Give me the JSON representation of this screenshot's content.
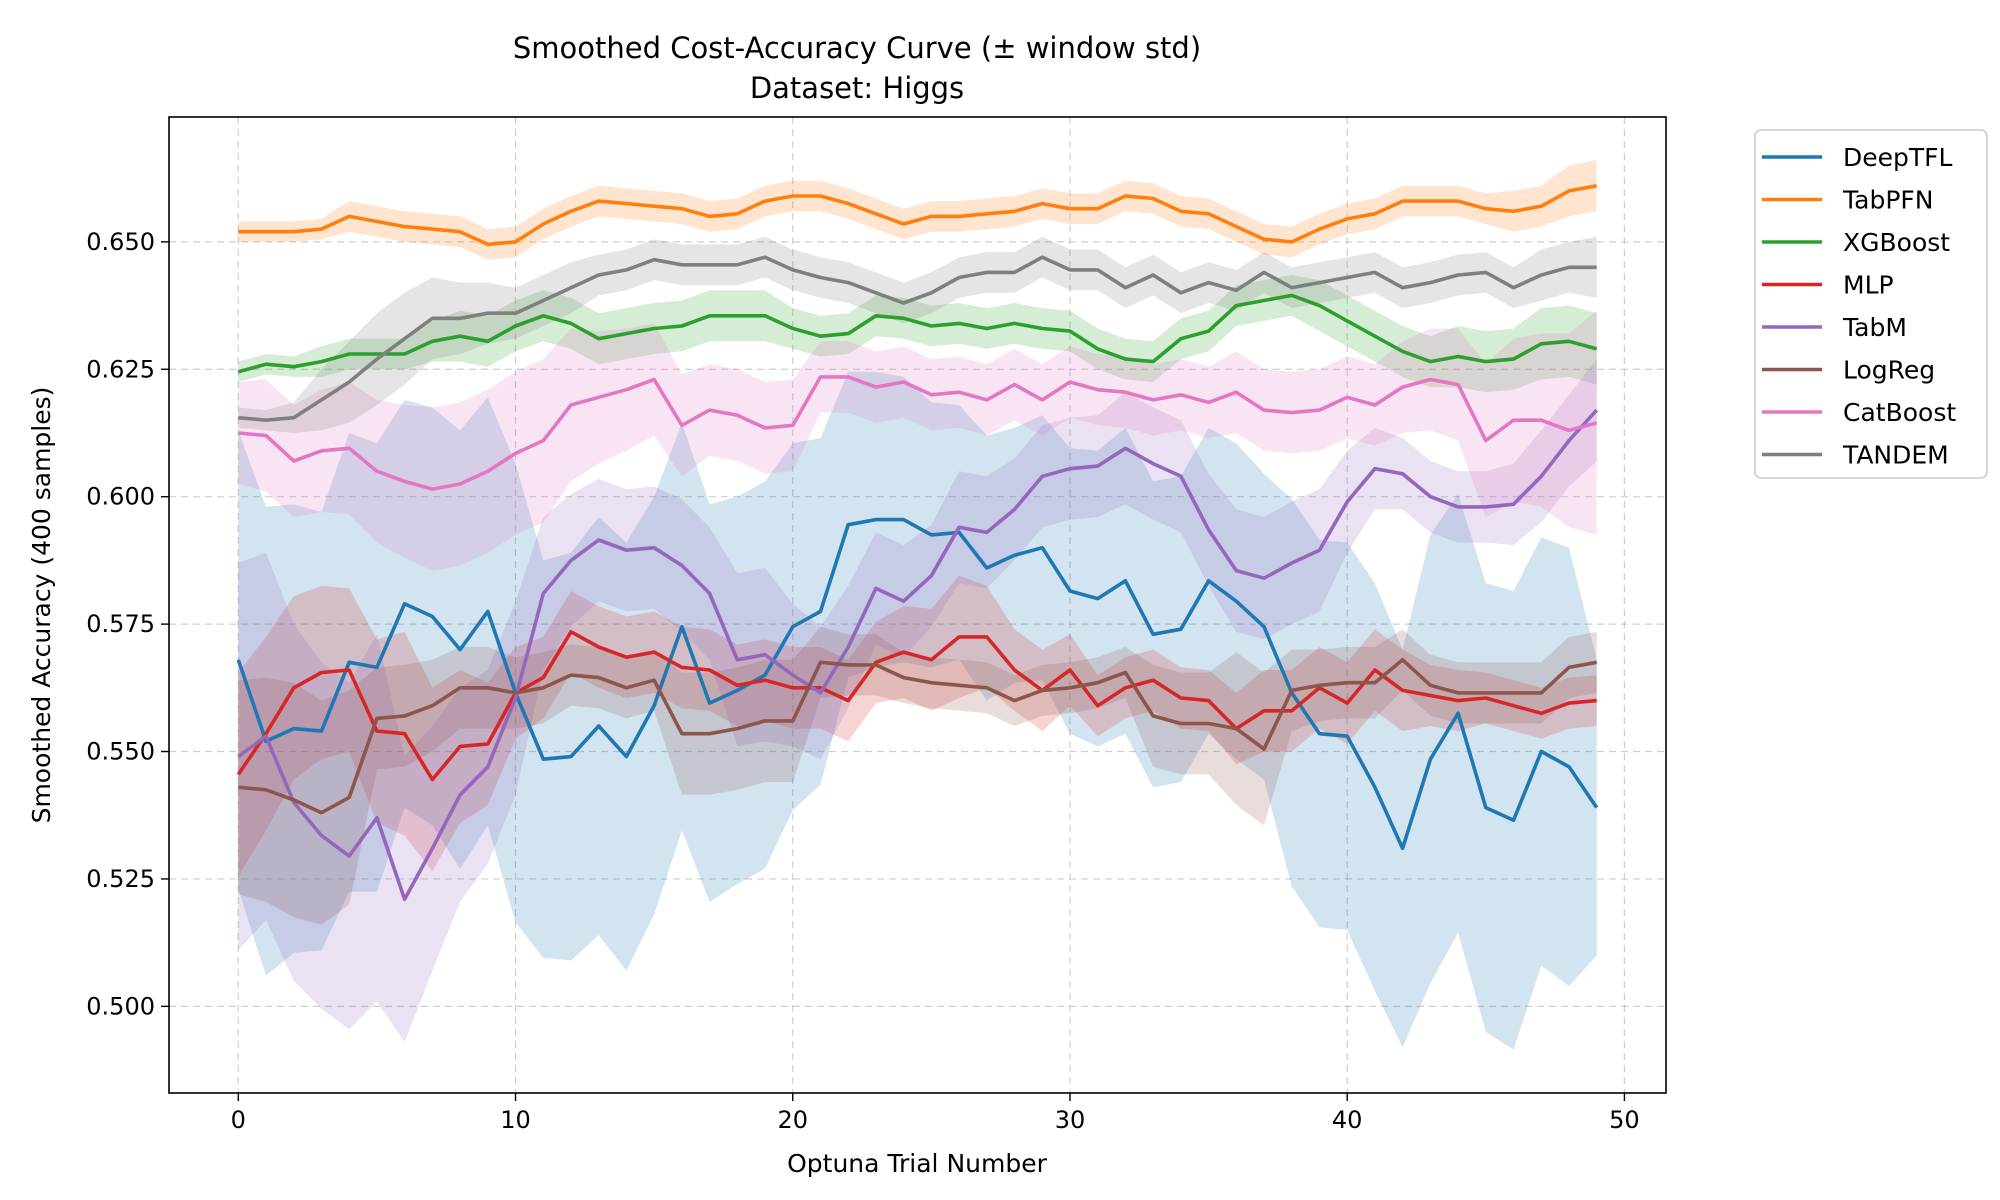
{
  "chart_data": {
    "type": "line",
    "title": "Smoothed Cost-Accuracy Curve (± window std)",
    "subtitle": "Dataset: Higgs",
    "xlabel": "Optuna Trial Number",
    "ylabel": "Smoothed Accuracy (400 samples)",
    "xlim": [
      -2.5,
      51.5
    ],
    "ylim": [
      0.483,
      0.6745
    ],
    "xticks": [
      0,
      10,
      20,
      30,
      40,
      50
    ],
    "yticks": [
      0.5,
      0.525,
      0.55,
      0.575,
      0.6,
      0.625,
      0.65
    ],
    "ytick_labels": [
      "0.500",
      "0.525",
      "0.550",
      "0.575",
      "0.600",
      "0.625",
      "0.650"
    ],
    "grid": true,
    "legend_position": "outside-top-right",
    "series": [
      {
        "name": "DeepTFL",
        "color": "#1f77b4",
        "values": [
          0.568,
          0.552,
          0.5545,
          0.554,
          0.5675,
          0.5665,
          0.579,
          0.5765,
          0.57,
          0.5775,
          0.5615,
          0.5485,
          0.549,
          0.555,
          0.549,
          0.559,
          0.5745,
          0.5595,
          0.562,
          0.565,
          0.5745,
          0.5775,
          0.5945,
          0.5955,
          0.5955,
          0.5925,
          0.593,
          0.586,
          0.5885,
          0.59,
          0.5815,
          0.58,
          0.5835,
          0.573,
          0.574,
          0.5835,
          0.5795,
          0.5745,
          0.5615,
          0.5535,
          0.553,
          0.543,
          0.531,
          0.5485,
          0.5575,
          0.539,
          0.5365,
          0.55,
          0.547,
          0.539
        ],
        "std": [
          0.045,
          0.046,
          0.044,
          0.043,
          0.045,
          0.044,
          0.04,
          0.041,
          0.043,
          0.042,
          0.045,
          0.039,
          0.04,
          0.041,
          0.042,
          0.041,
          0.04,
          0.039,
          0.038,
          0.038,
          0.036,
          0.034,
          0.03,
          0.029,
          0.028,
          0.026,
          0.025,
          0.026,
          0.025,
          0.026,
          0.028,
          0.029,
          0.03,
          0.03,
          0.03,
          0.03,
          0.031,
          0.03,
          0.038,
          0.038,
          0.038,
          0.04,
          0.039,
          0.044,
          0.043,
          0.044,
          0.045,
          0.042,
          0.043,
          0.029
        ]
      },
      {
        "name": "TabPFN",
        "color": "#ff7f0e",
        "values": [
          0.652,
          0.652,
          0.652,
          0.6525,
          0.655,
          0.654,
          0.653,
          0.6525,
          0.652,
          0.6495,
          0.65,
          0.6535,
          0.656,
          0.658,
          0.6575,
          0.657,
          0.6565,
          0.655,
          0.6555,
          0.658,
          0.659,
          0.659,
          0.6575,
          0.6555,
          0.6535,
          0.655,
          0.655,
          0.6555,
          0.656,
          0.6575,
          0.6565,
          0.6565,
          0.659,
          0.6585,
          0.656,
          0.6555,
          0.653,
          0.6505,
          0.65,
          0.6525,
          0.6545,
          0.6555,
          0.658,
          0.658,
          0.658,
          0.6565,
          0.656,
          0.657,
          0.66,
          0.661
        ],
        "std": [
          0.002,
          0.002,
          0.002,
          0.002,
          0.003,
          0.003,
          0.003,
          0.003,
          0.003,
          0.003,
          0.003,
          0.003,
          0.003,
          0.003,
          0.003,
          0.003,
          0.003,
          0.003,
          0.003,
          0.003,
          0.003,
          0.003,
          0.003,
          0.003,
          0.003,
          0.003,
          0.003,
          0.003,
          0.003,
          0.003,
          0.003,
          0.003,
          0.003,
          0.003,
          0.003,
          0.003,
          0.003,
          0.003,
          0.003,
          0.003,
          0.003,
          0.003,
          0.003,
          0.003,
          0.003,
          0.003,
          0.004,
          0.004,
          0.005,
          0.005
        ]
      },
      {
        "name": "XGBoost",
        "color": "#2ca02c",
        "values": [
          0.6245,
          0.626,
          0.6255,
          0.6265,
          0.628,
          0.628,
          0.628,
          0.6305,
          0.6315,
          0.6305,
          0.6335,
          0.6355,
          0.634,
          0.631,
          0.632,
          0.633,
          0.6335,
          0.6355,
          0.6355,
          0.6355,
          0.633,
          0.6315,
          0.632,
          0.6355,
          0.635,
          0.6335,
          0.634,
          0.633,
          0.634,
          0.633,
          0.6325,
          0.629,
          0.627,
          0.6265,
          0.631,
          0.6325,
          0.6375,
          0.6385,
          0.6395,
          0.6375,
          0.6345,
          0.6315,
          0.6285,
          0.6265,
          0.6275,
          0.6265,
          0.627,
          0.63,
          0.6305,
          0.629
        ],
        "std": [
          0.002,
          0.002,
          0.002,
          0.003,
          0.003,
          0.003,
          0.003,
          0.004,
          0.005,
          0.005,
          0.005,
          0.005,
          0.005,
          0.005,
          0.005,
          0.005,
          0.005,
          0.005,
          0.005,
          0.005,
          0.004,
          0.004,
          0.004,
          0.004,
          0.004,
          0.004,
          0.004,
          0.004,
          0.004,
          0.004,
          0.004,
          0.004,
          0.004,
          0.004,
          0.004,
          0.004,
          0.004,
          0.004,
          0.004,
          0.005,
          0.005,
          0.005,
          0.005,
          0.005,
          0.006,
          0.006,
          0.006,
          0.007,
          0.007,
          0.007
        ]
      },
      {
        "name": "MLP",
        "color": "#d62728",
        "values": [
          0.5455,
          0.5535,
          0.5625,
          0.5655,
          0.566,
          0.554,
          0.5535,
          0.5445,
          0.551,
          0.5515,
          0.5615,
          0.5645,
          0.5735,
          0.5705,
          0.5685,
          0.5695,
          0.5665,
          0.566,
          0.563,
          0.564,
          0.5625,
          0.5625,
          0.56,
          0.5675,
          0.5695,
          0.568,
          0.5725,
          0.5725,
          0.566,
          0.562,
          0.566,
          0.559,
          0.5625,
          0.564,
          0.5605,
          0.56,
          0.5545,
          0.558,
          0.558,
          0.5625,
          0.5595,
          0.566,
          0.562,
          0.561,
          0.56,
          0.5605,
          0.559,
          0.5575,
          0.5595,
          0.56
        ],
        "std": [
          0.02,
          0.019,
          0.018,
          0.017,
          0.016,
          0.018,
          0.02,
          0.018,
          0.015,
          0.012,
          0.009,
          0.008,
          0.008,
          0.008,
          0.008,
          0.008,
          0.008,
          0.008,
          0.008,
          0.008,
          0.008,
          0.008,
          0.008,
          0.008,
          0.009,
          0.01,
          0.012,
          0.01,
          0.008,
          0.008,
          0.007,
          0.006,
          0.006,
          0.006,
          0.006,
          0.006,
          0.007,
          0.008,
          0.008,
          0.008,
          0.008,
          0.008,
          0.008,
          0.006,
          0.006,
          0.005,
          0.005,
          0.005,
          0.005,
          0.005
        ]
      },
      {
        "name": "TabM",
        "color": "#9467bd",
        "values": [
          0.549,
          0.553,
          0.54,
          0.5335,
          0.5295,
          0.537,
          0.521,
          0.531,
          0.5415,
          0.547,
          0.5605,
          0.581,
          0.5875,
          0.5915,
          0.5895,
          0.59,
          0.5865,
          0.581,
          0.568,
          0.569,
          0.565,
          0.5615,
          0.5705,
          0.582,
          0.5795,
          0.5845,
          0.594,
          0.593,
          0.5975,
          0.604,
          0.6055,
          0.606,
          0.6095,
          0.6065,
          0.604,
          0.5935,
          0.5855,
          0.584,
          0.587,
          0.5895,
          0.599,
          0.6055,
          0.6045,
          0.6,
          0.598,
          0.598,
          0.5985,
          0.604,
          0.611,
          0.617
        ],
        "std": [
          0.038,
          0.036,
          0.035,
          0.034,
          0.034,
          0.036,
          0.028,
          0.024,
          0.021,
          0.019,
          0.019,
          0.015,
          0.013,
          0.012,
          0.012,
          0.012,
          0.013,
          0.013,
          0.017,
          0.017,
          0.014,
          0.013,
          0.012,
          0.011,
          0.011,
          0.01,
          0.011,
          0.011,
          0.01,
          0.01,
          0.01,
          0.01,
          0.011,
          0.011,
          0.011,
          0.011,
          0.012,
          0.012,
          0.012,
          0.012,
          0.01,
          0.008,
          0.007,
          0.007,
          0.007,
          0.007,
          0.008,
          0.009,
          0.009,
          0.01
        ]
      },
      {
        "name": "LogReg",
        "color": "#8c564b",
        "values": [
          0.543,
          0.5425,
          0.5405,
          0.538,
          0.541,
          0.5565,
          0.557,
          0.559,
          0.5625,
          0.5625,
          0.5615,
          0.5625,
          0.565,
          0.5645,
          0.5625,
          0.564,
          0.5535,
          0.5535,
          0.5545,
          0.556,
          0.556,
          0.5675,
          0.567,
          0.567,
          0.5645,
          0.5635,
          0.563,
          0.5625,
          0.56,
          0.562,
          0.5625,
          0.5635,
          0.5655,
          0.557,
          0.5555,
          0.5555,
          0.5545,
          0.5505,
          0.562,
          0.563,
          0.5635,
          0.5635,
          0.568,
          0.563,
          0.5615,
          0.5615,
          0.5615,
          0.5615,
          0.5665,
          0.5675
        ],
        "std": [
          0.021,
          0.022,
          0.023,
          0.022,
          0.021,
          0.01,
          0.01,
          0.009,
          0.008,
          0.008,
          0.007,
          0.007,
          0.006,
          0.006,
          0.006,
          0.006,
          0.012,
          0.012,
          0.012,
          0.012,
          0.012,
          0.007,
          0.006,
          0.006,
          0.005,
          0.005,
          0.005,
          0.005,
          0.005,
          0.005,
          0.005,
          0.005,
          0.005,
          0.01,
          0.01,
          0.01,
          0.015,
          0.015,
          0.008,
          0.007,
          0.007,
          0.007,
          0.006,
          0.006,
          0.006,
          0.006,
          0.006,
          0.006,
          0.006,
          0.006
        ]
      },
      {
        "name": "CatBoost",
        "color": "#e377c2",
        "values": [
          0.6125,
          0.612,
          0.607,
          0.609,
          0.6095,
          0.605,
          0.603,
          0.6015,
          0.6025,
          0.605,
          0.6085,
          0.611,
          0.618,
          0.6195,
          0.621,
          0.623,
          0.614,
          0.617,
          0.616,
          0.6135,
          0.614,
          0.6235,
          0.6235,
          0.6215,
          0.6225,
          0.62,
          0.6205,
          0.619,
          0.622,
          0.619,
          0.6225,
          0.621,
          0.6205,
          0.619,
          0.62,
          0.6185,
          0.6205,
          0.617,
          0.6165,
          0.617,
          0.6195,
          0.618,
          0.6215,
          0.623,
          0.622,
          0.611,
          0.615,
          0.615,
          0.613,
          0.6145
        ],
        "std": [
          0.01,
          0.011,
          0.011,
          0.012,
          0.013,
          0.014,
          0.015,
          0.016,
          0.016,
          0.016,
          0.016,
          0.016,
          0.015,
          0.013,
          0.012,
          0.011,
          0.01,
          0.009,
          0.009,
          0.009,
          0.009,
          0.007,
          0.007,
          0.007,
          0.007,
          0.007,
          0.007,
          0.007,
          0.007,
          0.007,
          0.007,
          0.007,
          0.007,
          0.007,
          0.007,
          0.007,
          0.008,
          0.008,
          0.008,
          0.008,
          0.008,
          0.008,
          0.009,
          0.01,
          0.011,
          0.015,
          0.016,
          0.017,
          0.019,
          0.022
        ]
      },
      {
        "name": "TANDEM",
        "color": "#7f7f7f",
        "values": [
          0.6155,
          0.615,
          0.6155,
          0.619,
          0.6225,
          0.627,
          0.631,
          0.635,
          0.635,
          0.636,
          0.636,
          0.6385,
          0.641,
          0.6435,
          0.6445,
          0.6465,
          0.6455,
          0.6455,
          0.6455,
          0.647,
          0.6445,
          0.643,
          0.642,
          0.64,
          0.638,
          0.64,
          0.643,
          0.644,
          0.644,
          0.647,
          0.6445,
          0.6445,
          0.641,
          0.6435,
          0.64,
          0.642,
          0.6405,
          0.644,
          0.641,
          0.642,
          0.643,
          0.644,
          0.641,
          0.642,
          0.6435,
          0.644,
          0.641,
          0.6435,
          0.645,
          0.645
        ],
        "std": [
          0.002,
          0.002,
          0.003,
          0.006,
          0.008,
          0.009,
          0.009,
          0.008,
          0.007,
          0.006,
          0.005,
          0.005,
          0.005,
          0.004,
          0.004,
          0.004,
          0.004,
          0.004,
          0.004,
          0.004,
          0.004,
          0.004,
          0.004,
          0.004,
          0.004,
          0.004,
          0.004,
          0.004,
          0.004,
          0.004,
          0.004,
          0.004,
          0.004,
          0.004,
          0.004,
          0.004,
          0.004,
          0.004,
          0.004,
          0.004,
          0.004,
          0.004,
          0.004,
          0.004,
          0.004,
          0.004,
          0.004,
          0.005,
          0.005,
          0.006
        ]
      }
    ]
  }
}
